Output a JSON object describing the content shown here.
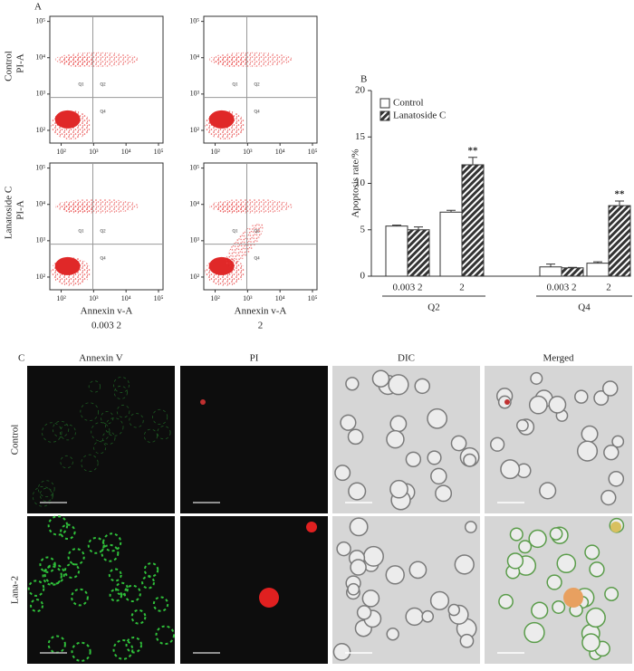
{
  "panel_labels": [
    "A",
    "B",
    "C"
  ],
  "flow": {
    "ylabel": "PI-A",
    "xlabel": "Annexin v-A",
    "rows": [
      "Control",
      "Lanatoside C"
    ],
    "columns": [
      "0.003 2",
      "2"
    ],
    "xlim": [
      1.65,
      5.14
    ],
    "ylim": [
      1.65,
      5.14
    ],
    "xticks": [
      {
        "value": 2,
        "label": "10²"
      },
      {
        "value": 3,
        "label": "10³"
      },
      {
        "value": 4,
        "label": "10⁴"
      },
      {
        "value": 5,
        "label": "10⁵"
      }
    ],
    "yticks": [
      {
        "value": 2,
        "label": "10²"
      },
      {
        "value": 3,
        "label": "10³"
      },
      {
        "value": 4,
        "label": "10⁴"
      },
      {
        "value": 5,
        "label": "10⁵"
      }
    ],
    "quadrants": [
      "Q1",
      "Q2",
      "Q4"
    ]
  },
  "chart_data": {
    "type": "bar",
    "ylabel": "Apoptosis rate/%",
    "categories": [
      "0.003 2",
      "2",
      "0.003 2",
      "2"
    ],
    "groups": [
      "Q2",
      "Q4"
    ],
    "series": [
      {
        "name": "Control",
        "color": "#ffffff",
        "values": [
          5.4,
          6.9,
          1.0,
          1.4
        ],
        "errors": [
          0.1,
          0.2,
          0.3,
          0.15
        ]
      },
      {
        "name": "Lanatoside C",
        "color": "#333333",
        "hatch": true,
        "values": [
          5.0,
          12.0,
          0.9,
          7.6
        ],
        "errors": [
          0.3,
          0.8,
          0.05,
          0.5
        ]
      }
    ],
    "annotations": [
      "**",
      "**"
    ],
    "ylim": [
      0,
      20
    ],
    "yticks": [
      0,
      5,
      10,
      15,
      20
    ],
    "legend": "upper left"
  },
  "microscopy": {
    "columns": [
      "Annexin V",
      "PI",
      "DIC",
      "Merged"
    ],
    "rows": [
      "Control",
      "Lana-2"
    ]
  }
}
